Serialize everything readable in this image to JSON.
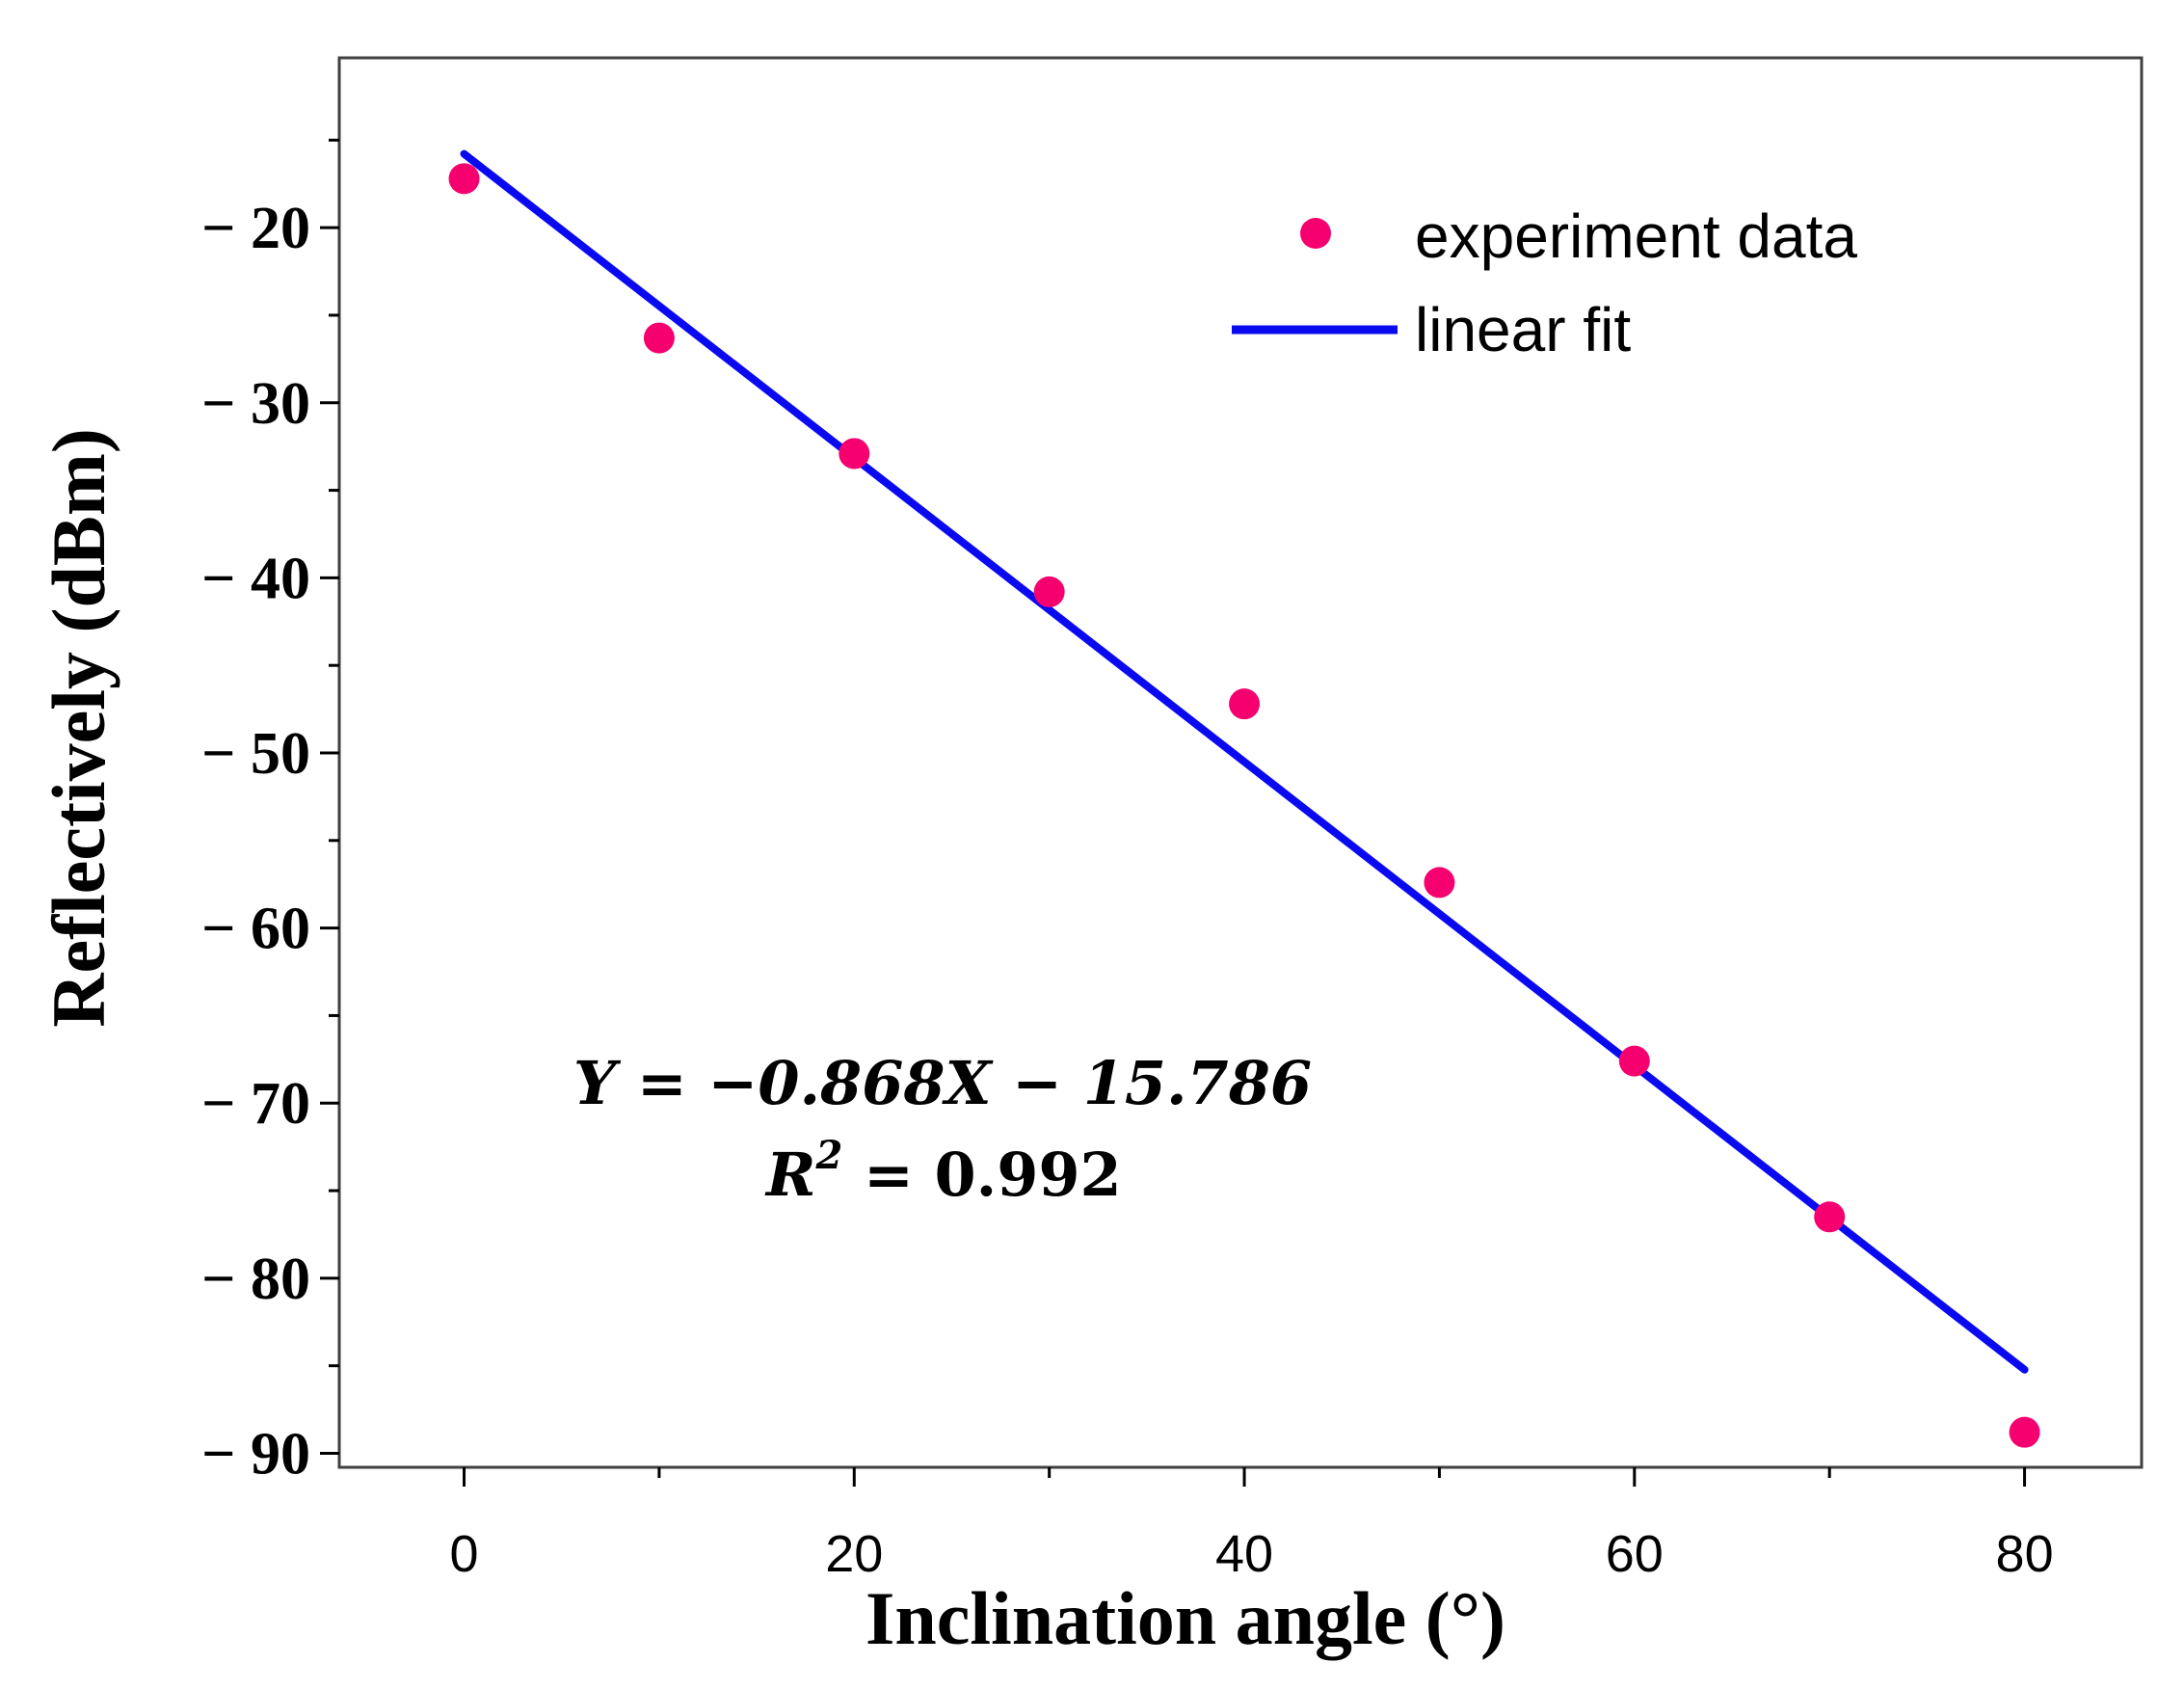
{
  "chart_data": {
    "type": "scatter",
    "title": "",
    "xlabel": "Inclination angle (°)",
    "ylabel": "Reflectively (dBm)",
    "xlim": [
      -6.4,
      86
    ],
    "ylim": [
      -90.8,
      -10.3
    ],
    "xticks": [
      0,
      20,
      40,
      60,
      80
    ],
    "xtick_labels": [
      "0",
      "20",
      "40",
      "60",
      "80"
    ],
    "yticks": [
      -20,
      -30,
      -40,
      -50,
      -60,
      -70,
      -80,
      -90
    ],
    "ytick_labels": [
      "− 20",
      "− 30",
      "− 40",
      "− 50",
      "− 60",
      "− 70",
      "− 80",
      "− 90"
    ],
    "grid": false,
    "legend_position": "top-right",
    "series": [
      {
        "name": "experiment data",
        "kind": "scatter",
        "color": "#f5006e",
        "x": [
          0,
          10,
          20,
          30,
          40,
          50,
          60,
          70,
          80
        ],
        "y": [
          -17.2,
          -26.3,
          -32.9,
          -40.8,
          -47.2,
          -57.4,
          -67.6,
          -76.5,
          -88.8
        ]
      },
      {
        "name": "linear fit",
        "kind": "line",
        "color": "#0a0af0",
        "slope": -0.868,
        "intercept": -15.786,
        "x_range": [
          0,
          80
        ]
      }
    ],
    "annotations": {
      "equation": "Y = −0.868X − 15.786",
      "r_squared_label": "R",
      "r_squared_power": "2",
      "r_squared_value": " = 0.992"
    }
  }
}
